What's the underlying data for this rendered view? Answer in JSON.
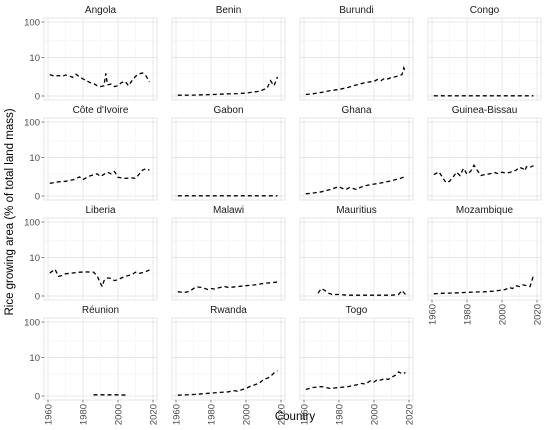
{
  "chart_data": {
    "type": "line",
    "layout": "facet-grid",
    "ylabel": "Rice growing area (% of total land mass)",
    "xlabel": "Country",
    "y_ticks": [
      0,
      10,
      100
    ],
    "y_tick_labels": [
      "0",
      "10",
      "100"
    ],
    "y_scale": "pseudo-log",
    "x_ticks": [
      1960,
      1980,
      2000,
      2020
    ],
    "x_tick_labels": [
      "1960",
      "1980",
      "2000",
      "2020"
    ],
    "xlim": [
      1960,
      2020
    ],
    "grid": true,
    "line_style": "dashed",
    "line_color": "#000000",
    "panels": [
      {
        "name": "Angola",
        "x": [
          1961,
          1964,
          1966,
          1968,
          1970,
          1972,
          1974,
          1976,
          1978,
          1980,
          1982,
          1984,
          1986,
          1988,
          1990,
          1992,
          1993,
          1994,
          1996,
          1998,
          2000,
          2002,
          2004,
          2006,
          2008,
          2010,
          2012,
          2014,
          2016,
          2018
        ],
        "y": [
          2.8,
          2.4,
          2.6,
          2.4,
          2.7,
          2.5,
          2.2,
          2.9,
          2.3,
          1.9,
          1.6,
          1.3,
          1.2,
          0.9,
          0.8,
          0.9,
          3.1,
          1.0,
          1.1,
          0.8,
          0.9,
          1.3,
          1.5,
          0.9,
          1.6,
          2.4,
          3.0,
          3.2,
          2.5,
          1.4
        ]
      },
      {
        "name": "Benin",
        "x": [
          1961,
          1965,
          1970,
          1975,
          1980,
          1985,
          1990,
          1995,
          2000,
          2005,
          2008,
          2010,
          2012,
          2014,
          2016,
          2018
        ],
        "y": [
          0.05,
          0.05,
          0.06,
          0.08,
          0.09,
          0.12,
          0.14,
          0.16,
          0.2,
          0.3,
          0.35,
          0.5,
          0.6,
          1.6,
          0.9,
          2.3
        ]
      },
      {
        "name": "Burundi",
        "x": [
          1961,
          1965,
          1970,
          1975,
          1980,
          1985,
          1990,
          1995,
          2000,
          2002,
          2004,
          2006,
          2008,
          2010,
          2012,
          2014,
          2016,
          2017,
          2018
        ],
        "y": [
          0.1,
          0.15,
          0.25,
          0.4,
          0.5,
          0.7,
          1.0,
          1.3,
          1.5,
          1.8,
          1.6,
          2.0,
          1.9,
          2.2,
          2.3,
          2.5,
          2.8,
          4.8,
          3.5
        ]
      },
      {
        "name": "Congo",
        "x": [
          1961,
          1970,
          1980,
          1990,
          2000,
          2010,
          2018
        ],
        "y": [
          0.01,
          0.01,
          0.01,
          0.01,
          0.01,
          0.01,
          0.01
        ]
      },
      {
        "name": "Côte d'Ivoire",
        "x": [
          1961,
          1965,
          1970,
          1975,
          1978,
          1980,
          1984,
          1988,
          1990,
          1994,
          1996,
          1998,
          2000,
          2004,
          2008,
          2010,
          2014,
          2016,
          2018
        ],
        "y": [
          1.2,
          1.4,
          1.5,
          1.8,
          2.3,
          1.8,
          2.5,
          3.0,
          2.4,
          3.4,
          3.0,
          3.6,
          2.2,
          2.0,
          2.1,
          2.0,
          4.0,
          4.5,
          4.0
        ]
      },
      {
        "name": "Gabon",
        "x": [
          1961,
          1970,
          1980,
          1990,
          2000,
          2010,
          2018
        ],
        "y": [
          0.01,
          0.01,
          0.01,
          0.01,
          0.01,
          0.01,
          0.01
        ]
      },
      {
        "name": "Ghana",
        "x": [
          1961,
          1965,
          1970,
          1975,
          1980,
          1982,
          1984,
          1986,
          1988,
          1990,
          1992,
          1995,
          2000,
          2005,
          2010,
          2015,
          2018
        ],
        "y": [
          0.15,
          0.2,
          0.3,
          0.5,
          0.8,
          0.6,
          0.5,
          0.7,
          0.6,
          0.5,
          0.7,
          0.9,
          1.1,
          1.3,
          1.6,
          2.0,
          2.4
        ]
      },
      {
        "name": "Guinea-Bissau",
        "x": [
          1961,
          1964,
          1966,
          1968,
          1970,
          1972,
          1974,
          1976,
          1978,
          1980,
          1982,
          1984,
          1986,
          1988,
          1990,
          1992,
          1994,
          1996,
          1998,
          2000,
          2002,
          2004,
          2006,
          2008,
          2010,
          2012,
          2013,
          2014,
          2016,
          2018
        ],
        "y": [
          2.8,
          3.5,
          2.2,
          1.3,
          1.5,
          2.2,
          3.4,
          2.6,
          4.6,
          2.9,
          3.6,
          5.8,
          3.8,
          2.6,
          2.8,
          2.9,
          3.1,
          3.3,
          3.0,
          3.4,
          3.2,
          3.3,
          3.6,
          4.0,
          5.0,
          4.5,
          3.8,
          5.2,
          5.0,
          5.6
        ]
      },
      {
        "name": "Liberia",
        "x": [
          1961,
          1964,
          1966,
          1968,
          1970,
          1974,
          1978,
          1982,
          1986,
          1988,
          1990,
          1991,
          1992,
          1994,
          1996,
          1998,
          2000,
          2004,
          2008,
          2010,
          2012,
          2014,
          2016,
          2018
        ],
        "y": [
          3.2,
          4.3,
          2.4,
          2.6,
          3.0,
          3.2,
          3.4,
          3.5,
          3.4,
          2.6,
          1.2,
          0.8,
          1.6,
          2.1,
          2.0,
          1.6,
          1.8,
          2.4,
          2.8,
          3.4,
          3.1,
          3.3,
          3.6,
          4.1
        ]
      },
      {
        "name": "Malawi",
        "x": [
          1961,
          1965,
          1968,
          1970,
          1972,
          1975,
          1978,
          1980,
          1982,
          1985,
          1988,
          1990,
          1995,
          2000,
          2005,
          2010,
          2015,
          2018
        ],
        "y": [
          0.3,
          0.25,
          0.35,
          0.6,
          0.75,
          0.7,
          0.5,
          0.6,
          0.55,
          0.7,
          0.8,
          0.7,
          0.8,
          0.9,
          1.0,
          1.2,
          1.3,
          1.4
        ]
      },
      {
        "name": "Mauritius",
        "x": [
          1968,
          1970,
          1972,
          1974,
          1976,
          1980,
          1985,
          1990,
          1995,
          2000,
          2005,
          2010,
          2014,
          2016,
          2018
        ],
        "y": [
          0.2,
          0.6,
          0.4,
          0.2,
          0.1,
          0.1,
          0.05,
          0.05,
          0.05,
          0.05,
          0.05,
          0.05,
          0.1,
          0.4,
          0.1
        ]
      },
      {
        "name": "Mozambique",
        "x": [
          1961,
          1965,
          1970,
          1975,
          1980,
          1985,
          1990,
          1995,
          2000,
          2002,
          2004,
          2006,
          2008,
          2010,
          2012,
          2014,
          2016,
          2018
        ],
        "y": [
          0.15,
          0.18,
          0.2,
          0.22,
          0.25,
          0.28,
          0.3,
          0.35,
          0.45,
          0.5,
          0.7,
          0.6,
          0.9,
          0.8,
          1.0,
          0.9,
          0.8,
          2.6
        ]
      },
      {
        "name": "Réunion",
        "x": [
          1986,
          1990,
          1995,
          2000,
          2005
        ],
        "y": [
          0.08,
          0.08,
          0.08,
          0.08,
          0.06
        ]
      },
      {
        "name": "Rwanda",
        "x": [
          1961,
          1965,
          1970,
          1975,
          1980,
          1985,
          1990,
          1993,
          1995,
          1998,
          2000,
          2003,
          2005,
          2008,
          2010,
          2012,
          2014,
          2016,
          2018
        ],
        "y": [
          0.05,
          0.07,
          0.1,
          0.15,
          0.2,
          0.25,
          0.3,
          0.4,
          0.35,
          0.5,
          0.6,
          0.9,
          1.0,
          1.3,
          1.8,
          2.0,
          2.4,
          3.2,
          3.8
        ]
      },
      {
        "name": "Togo",
        "x": [
          1961,
          1965,
          1970,
          1975,
          1980,
          1985,
          1990,
          1993,
          1995,
          1998,
          2000,
          2002,
          2004,
          2006,
          2008,
          2010,
          2012,
          2014,
          2016,
          2018
        ],
        "y": [
          0.5,
          0.7,
          0.8,
          0.6,
          0.7,
          0.8,
          1.0,
          1.2,
          1.1,
          1.6,
          1.4,
          1.8,
          1.7,
          2.0,
          1.8,
          2.2,
          2.6,
          3.5,
          3.0,
          3.3
        ]
      }
    ]
  }
}
